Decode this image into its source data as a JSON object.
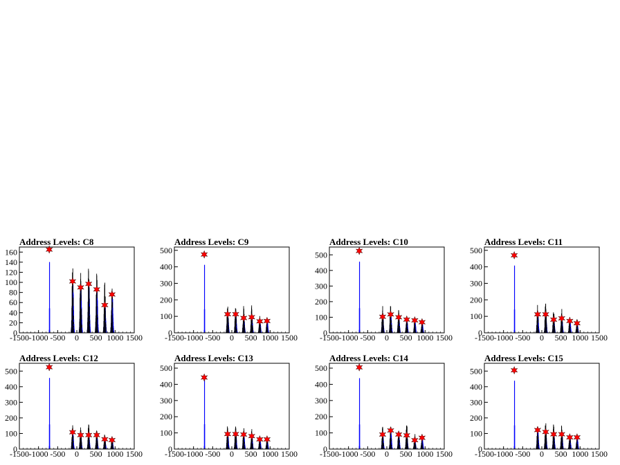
{
  "colors": {
    "histogram": "#0000ff",
    "raw": "#000000",
    "peak_marker": "#ff0000",
    "frame": "#000000"
  },
  "chart_data": [
    {
      "type": "bar",
      "title": "Address Levels: C8",
      "xlim": [
        -1500,
        1500
      ],
      "ylim": [
        0,
        170
      ],
      "x_ticks": [
        -1500,
        -1000,
        -500,
        0,
        500,
        1000,
        1500
      ],
      "y_ticks": [
        0,
        20,
        40,
        60,
        80,
        100,
        120,
        140,
        160
      ],
      "peaks": [
        {
          "x": -720,
          "y": 165
        },
        {
          "x": -110,
          "y": 102
        },
        {
          "x": 100,
          "y": 90
        },
        {
          "x": 310,
          "y": 97
        },
        {
          "x": 520,
          "y": 86
        },
        {
          "x": 730,
          "y": 55
        },
        {
          "x": 920,
          "y": 76
        }
      ],
      "raw_peaks": [
        {
          "x": -720,
          "y": 160
        },
        {
          "x": -110,
          "y": 138
        },
        {
          "x": 100,
          "y": 138
        },
        {
          "x": 310,
          "y": 148
        },
        {
          "x": 520,
          "y": 130
        },
        {
          "x": 730,
          "y": 105
        },
        {
          "x": 920,
          "y": 97
        }
      ]
    },
    {
      "type": "bar",
      "title": "Address Levels: C9",
      "xlim": [
        -1500,
        1500
      ],
      "ylim": [
        0,
        520
      ],
      "x_ticks": [
        -1500,
        -1000,
        -500,
        0,
        500,
        1000,
        1500
      ],
      "y_ticks": [
        0,
        100,
        200,
        300,
        400,
        500
      ],
      "peaks": [
        {
          "x": -720,
          "y": 475
        },
        {
          "x": -110,
          "y": 113
        },
        {
          "x": 100,
          "y": 113
        },
        {
          "x": 310,
          "y": 90
        },
        {
          "x": 520,
          "y": 95
        },
        {
          "x": 730,
          "y": 70
        },
        {
          "x": 920,
          "y": 72
        }
      ],
      "raw_peaks": [
        {
          "x": -720,
          "y": 470
        },
        {
          "x": -110,
          "y": 180
        },
        {
          "x": 100,
          "y": 180
        },
        {
          "x": 310,
          "y": 170
        },
        {
          "x": 520,
          "y": 170
        },
        {
          "x": 730,
          "y": 105
        },
        {
          "x": 920,
          "y": 85
        }
      ]
    },
    {
      "type": "bar",
      "title": "Address Levels: C10",
      "xlim": [
        -1500,
        1500
      ],
      "ylim": [
        0,
        550
      ],
      "x_ticks": [
        -1500,
        -1000,
        -500,
        0,
        500,
        1000,
        1500
      ],
      "y_ticks": [
        0,
        100,
        200,
        300,
        400,
        500
      ],
      "peaks": [
        {
          "x": -720,
          "y": 525
        },
        {
          "x": -110,
          "y": 103
        },
        {
          "x": 100,
          "y": 118
        },
        {
          "x": 310,
          "y": 100
        },
        {
          "x": 520,
          "y": 85
        },
        {
          "x": 730,
          "y": 80
        },
        {
          "x": 920,
          "y": 68
        }
      ],
      "raw_peaks": [
        {
          "x": -720,
          "y": 520
        },
        {
          "x": -110,
          "y": 180
        },
        {
          "x": 100,
          "y": 190
        },
        {
          "x": 310,
          "y": 160
        },
        {
          "x": 520,
          "y": 130
        },
        {
          "x": 730,
          "y": 100
        },
        {
          "x": 920,
          "y": 90
        }
      ]
    },
    {
      "type": "bar",
      "title": "Address Levels: C11",
      "xlim": [
        -1500,
        1500
      ],
      "ylim": [
        0,
        520
      ],
      "x_ticks": [
        -1500,
        -1000,
        -500,
        0,
        500,
        1000,
        1500
      ],
      "y_ticks": [
        0,
        100,
        200,
        300,
        400,
        500
      ],
      "peaks": [
        {
          "x": -720,
          "y": 470
        },
        {
          "x": -110,
          "y": 112
        },
        {
          "x": 100,
          "y": 112
        },
        {
          "x": 310,
          "y": 80
        },
        {
          "x": 520,
          "y": 88
        },
        {
          "x": 730,
          "y": 72
        },
        {
          "x": 920,
          "y": 58
        }
      ],
      "raw_peaks": [
        {
          "x": -720,
          "y": 465
        },
        {
          "x": -110,
          "y": 175
        },
        {
          "x": 100,
          "y": 195
        },
        {
          "x": 310,
          "y": 170
        },
        {
          "x": 520,
          "y": 150
        },
        {
          "x": 730,
          "y": 110
        },
        {
          "x": 920,
          "y": 90
        }
      ]
    },
    {
      "type": "bar",
      "title": "Address Levels: C12",
      "xlim": [
        -1500,
        1500
      ],
      "ylim": [
        0,
        550
      ],
      "x_ticks": [
        -1500,
        -1000,
        -500,
        0,
        500,
        1000,
        1500
      ],
      "y_ticks": [
        0,
        100,
        200,
        300,
        400,
        500
      ],
      "peaks": [
        {
          "x": -720,
          "y": 525
        },
        {
          "x": -110,
          "y": 108
        },
        {
          "x": 100,
          "y": 90
        },
        {
          "x": 310,
          "y": 90
        },
        {
          "x": 520,
          "y": 90
        },
        {
          "x": 730,
          "y": 63
        },
        {
          "x": 920,
          "y": 58
        }
      ],
      "raw_peaks": [
        {
          "x": -720,
          "y": 520
        },
        {
          "x": -110,
          "y": 160
        },
        {
          "x": 100,
          "y": 160
        },
        {
          "x": 310,
          "y": 170
        },
        {
          "x": 520,
          "y": 155
        },
        {
          "x": 730,
          "y": 100
        },
        {
          "x": 920,
          "y": 85
        }
      ]
    },
    {
      "type": "bar",
      "title": "Address Levels: C13",
      "xlim": [
        -1500,
        1500
      ],
      "ylim": [
        0,
        530
      ],
      "x_ticks": [
        -1500,
        -1000,
        -500,
        0,
        500,
        1000,
        1500
      ],
      "y_ticks": [
        0,
        100,
        200,
        300,
        400,
        500
      ],
      "peaks": [
        {
          "x": -720,
          "y": 442
        },
        {
          "x": -110,
          "y": 93
        },
        {
          "x": 100,
          "y": 93
        },
        {
          "x": 310,
          "y": 90
        },
        {
          "x": 520,
          "y": 80
        },
        {
          "x": 730,
          "y": 60
        },
        {
          "x": 920,
          "y": 60
        }
      ],
      "raw_peaks": [
        {
          "x": -720,
          "y": 505
        },
        {
          "x": -110,
          "y": 150
        },
        {
          "x": 100,
          "y": 165
        },
        {
          "x": 310,
          "y": 140
        },
        {
          "x": 520,
          "y": 130
        },
        {
          "x": 730,
          "y": 85
        },
        {
          "x": 920,
          "y": 80
        }
      ]
    },
    {
      "type": "bar",
      "title": "Address Levels: C14",
      "xlim": [
        -1500,
        1500
      ],
      "ylim": [
        0,
        530
      ],
      "x_ticks": [
        -1500,
        -1000,
        -500,
        0,
        500,
        1000,
        1500
      ],
      "y_ticks": [
        0,
        100,
        200,
        300,
        400,
        500
      ],
      "peaks": [
        {
          "x": -720,
          "y": 505
        },
        {
          "x": -110,
          "y": 90
        },
        {
          "x": 100,
          "y": 115
        },
        {
          "x": 310,
          "y": 90
        },
        {
          "x": 520,
          "y": 85
        },
        {
          "x": 730,
          "y": 55
        },
        {
          "x": 920,
          "y": 70
        }
      ],
      "raw_peaks": [
        {
          "x": -720,
          "y": 500
        },
        {
          "x": -110,
          "y": 140
        },
        {
          "x": 100,
          "y": 150
        },
        {
          "x": 310,
          "y": 140
        },
        {
          "x": 520,
          "y": 180
        },
        {
          "x": 730,
          "y": 100
        },
        {
          "x": 920,
          "y": 85
        }
      ]
    },
    {
      "type": "bar",
      "title": "Address Levels: C15",
      "xlim": [
        -1500,
        1500
      ],
      "ylim": [
        0,
        550
      ],
      "x_ticks": [
        -1500,
        -1000,
        -500,
        0,
        500,
        1000,
        1500
      ],
      "y_ticks": [
        0,
        100,
        200,
        300,
        400,
        500
      ],
      "peaks": [
        {
          "x": -720,
          "y": 505
        },
        {
          "x": -110,
          "y": 122
        },
        {
          "x": 100,
          "y": 110
        },
        {
          "x": 310,
          "y": 95
        },
        {
          "x": 520,
          "y": 95
        },
        {
          "x": 730,
          "y": 75
        },
        {
          "x": 920,
          "y": 75
        }
      ],
      "raw_peaks": [
        {
          "x": -720,
          "y": 500
        },
        {
          "x": -110,
          "y": 160
        },
        {
          "x": 100,
          "y": 190
        },
        {
          "x": 310,
          "y": 170
        },
        {
          "x": 520,
          "y": 175
        },
        {
          "x": 730,
          "y": 110
        },
        {
          "x": 920,
          "y": 90
        }
      ]
    }
  ]
}
